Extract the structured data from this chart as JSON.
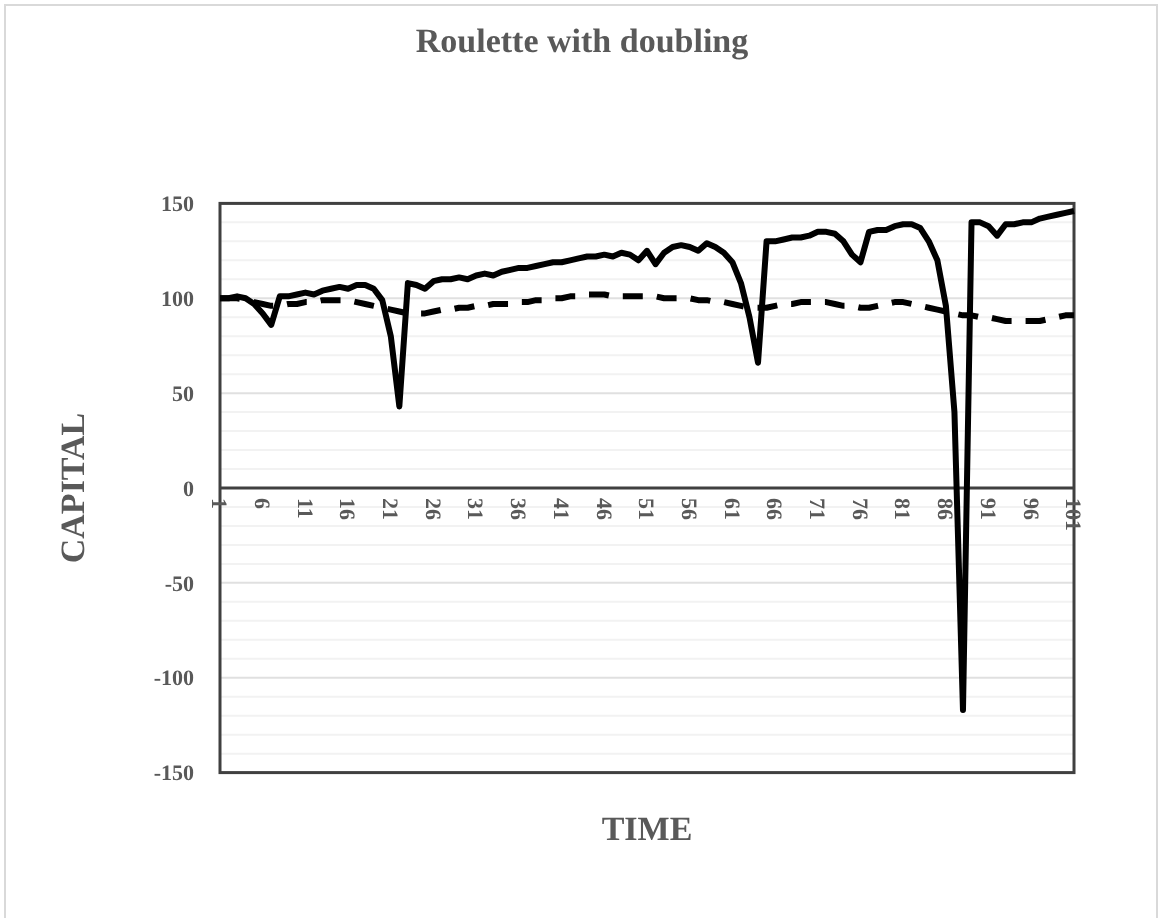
{
  "chart_data": {
    "type": "line",
    "title": "Roulette with doubling",
    "xlabel": "TIME",
    "ylabel": "CAPITAL",
    "categories": [
      "1",
      null,
      null,
      null,
      null,
      "6",
      null,
      null,
      null,
      null,
      "11",
      null,
      null,
      null,
      null,
      "16",
      null,
      null,
      null,
      null,
      "21",
      null,
      null,
      null,
      null,
      "26",
      null,
      null,
      null,
      null,
      "31",
      null,
      null,
      null,
      null,
      "36",
      null,
      null,
      null,
      null,
      "41",
      null,
      null,
      null,
      null,
      "46",
      null,
      null,
      null,
      null,
      "51",
      null,
      null,
      null,
      null,
      "56",
      null,
      null,
      null,
      null,
      "61",
      null,
      null,
      null,
      null,
      "66",
      null,
      null,
      null,
      null,
      "71",
      null,
      null,
      null,
      null,
      "76",
      null,
      null,
      null,
      null,
      "81",
      null,
      null,
      null,
      null,
      "86",
      null,
      null,
      null,
      null,
      "91",
      null,
      null,
      null,
      null,
      "96",
      null,
      null,
      null,
      null,
      "101"
    ],
    "series": [
      {
        "color": "#000000",
        "line_style": "solid",
        "values": [
          100,
          100,
          101,
          100,
          97,
          92,
          86,
          101,
          101,
          102,
          103,
          102,
          104,
          105,
          106,
          105,
          107,
          107,
          105,
          99,
          80,
          43,
          108,
          107,
          105,
          109,
          110,
          110,
          111,
          110,
          112,
          113,
          112,
          114,
          115,
          116,
          116,
          117,
          118,
          119,
          119,
          120,
          121,
          122,
          122,
          123,
          122,
          124,
          123,
          120,
          125,
          118,
          124,
          127,
          128,
          127,
          125,
          129,
          127,
          124,
          119,
          108,
          90,
          66,
          130,
          130,
          131,
          132,
          132,
          133,
          135,
          135,
          134,
          130,
          123,
          119,
          135,
          136,
          136,
          138,
          139,
          139,
          137,
          130,
          120,
          96,
          40,
          -117,
          140,
          140,
          138,
          133,
          139,
          139,
          140,
          140,
          142,
          143,
          144,
          145,
          146
        ]
      },
      {
        "color": "#000000",
        "line_style": "dashed",
        "values": [
          100,
          100,
          100,
          99,
          98,
          97,
          96,
          96,
          97,
          97,
          98,
          98,
          99,
          99,
          99,
          99,
          98,
          97,
          96,
          95,
          94,
          93,
          92,
          92,
          92,
          93,
          94,
          94,
          95,
          95,
          96,
          96,
          97,
          97,
          97,
          98,
          98,
          99,
          99,
          100,
          100,
          101,
          101,
          102,
          102,
          102,
          101,
          101,
          101,
          101,
          101,
          101,
          100,
          100,
          100,
          100,
          99,
          99,
          98,
          98,
          97,
          96,
          95,
          95,
          95,
          96,
          97,
          97,
          98,
          98,
          98,
          98,
          97,
          96,
          96,
          95,
          95,
          96,
          97,
          98,
          98,
          97,
          96,
          95,
          94,
          93,
          92,
          91,
          91,
          90,
          90,
          89,
          88,
          88,
          88,
          88,
          88,
          89,
          90,
          91,
          91
        ]
      }
    ],
    "ylim": [
      -150,
      150
    ],
    "yticks": [
      -150,
      {
        "value": -140,
        "label": null
      },
      {
        "value": -130,
        "label": null
      },
      {
        "value": -120,
        "label": null
      },
      {
        "value": -110,
        "label": null
      },
      -100,
      {
        "value": -90,
        "label": null
      },
      {
        "value": -80,
        "label": null
      },
      {
        "value": -70,
        "label": null
      },
      {
        "value": -60,
        "label": null
      },
      -50,
      {
        "value": -40,
        "label": null
      },
      {
        "value": -30,
        "label": null
      },
      {
        "value": -20,
        "label": null
      },
      {
        "value": -10,
        "label": null
      },
      0,
      {
        "value": 10,
        "label": null
      },
      {
        "value": 20,
        "label": null
      },
      {
        "value": 30,
        "label": null
      },
      {
        "value": 40,
        "label": null
      },
      50,
      {
        "value": 60,
        "label": null
      },
      {
        "value": 70,
        "label": null
      },
      {
        "value": 80,
        "label": null
      },
      {
        "value": 90,
        "label": null
      },
      100,
      {
        "value": 110,
        "label": null
      },
      {
        "value": 120,
        "label": null
      },
      {
        "value": 130,
        "label": null
      },
      {
        "value": 140,
        "label": null
      },
      150
    ],
    "grid": "y"
  }
}
